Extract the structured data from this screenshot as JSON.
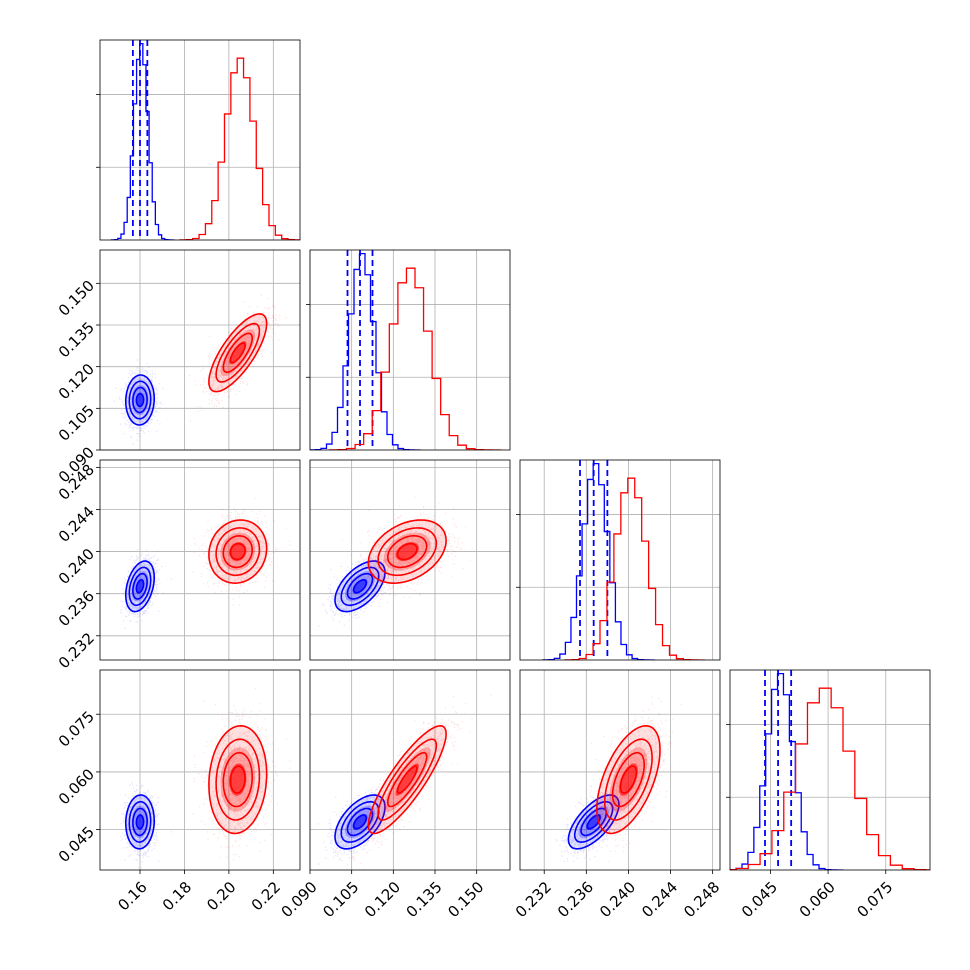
{
  "colors": {
    "blue": "#0000ff",
    "red": "#ff0000",
    "grid": "#b0b0b0"
  },
  "chart_data": {
    "type": "scatter",
    "title": "",
    "parameters": [
      {
        "ticks": [
          0.16,
          0.18,
          0.2,
          0.22
        ],
        "tick_labels": [
          "0.16",
          "0.18",
          "0.20",
          "0.22"
        ],
        "range": [
          0.142,
          0.232
        ]
      },
      {
        "ticks": [
          0.09,
          0.105,
          0.12,
          0.135,
          0.15
        ],
        "tick_labels": [
          "0.090",
          "0.105",
          "0.120",
          "0.135",
          "0.150"
        ],
        "range": [
          0.09,
          0.162
        ]
      },
      {
        "ticks": [
          0.232,
          0.236,
          0.24,
          0.244,
          0.248
        ],
        "tick_labels": [
          "0.232",
          "0.236",
          "0.240",
          "0.244",
          "0.248"
        ],
        "range": [
          0.2297,
          0.2487
        ]
      },
      {
        "ticks": [
          0.045,
          0.06,
          0.075
        ],
        "tick_labels": [
          "0.045",
          "0.060",
          "0.075"
        ],
        "range": [
          0.0345,
          0.0865
        ]
      }
    ],
    "series": [
      {
        "color": "blue",
        "mean": [
          0.16,
          0.108,
          0.2367,
          0.047
        ],
        "std": [
          0.0032,
          0.0045,
          0.0012,
          0.0035
        ],
        "correlation": [
          [
            1,
            0.05,
            0.35,
            0.05
          ],
          [
            0.05,
            1,
            0.55,
            0.55
          ],
          [
            0.35,
            0.55,
            1,
            0.65
          ],
          [
            0.05,
            0.55,
            0.65,
            1
          ]
        ],
        "quantiles": [
          [
            0.1568,
            0.16,
            0.1633
          ],
          [
            0.1035,
            0.108,
            0.1125
          ],
          [
            0.2354,
            0.2367,
            0.238
          ],
          [
            0.0436,
            0.047,
            0.0504
          ]
        ],
        "hist_peak_ticks": 2.7
      },
      {
        "color": "red",
        "mean": [
          0.204,
          0.125,
          0.24,
          0.058
        ],
        "std": [
          0.0065,
          0.007,
          0.0015,
          0.007
        ],
        "correlation": [
          [
            1,
            0.75,
            0.1,
            0.1
          ],
          [
            0.75,
            1,
            0.35,
            0.85
          ],
          [
            0.1,
            0.35,
            1,
            0.55
          ],
          [
            0.1,
            0.85,
            0.55,
            1
          ]
        ],
        "quantiles": [],
        "hist_peak_ticks": 2.5
      }
    ],
    "legend": "none",
    "grid": true
  }
}
